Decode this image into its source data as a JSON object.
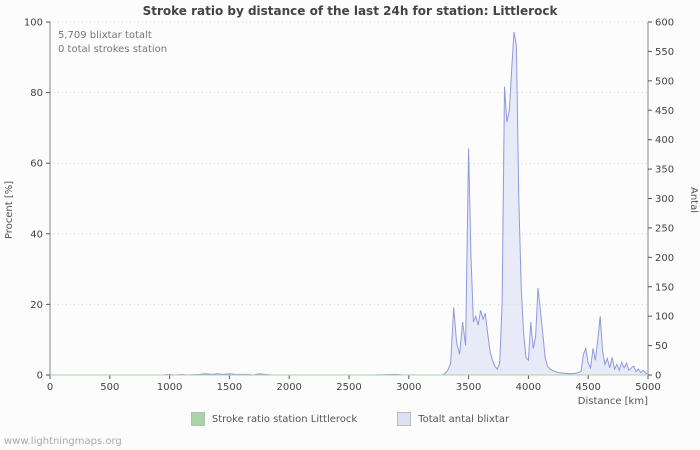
{
  "page": {
    "title": "Stroke ratio by distance of the last 24h for station: Littlerock",
    "watermark": "www.lightningmaps.org"
  },
  "annotations": {
    "line1": "5,709 blixtar totalt",
    "line2": "0 total strokes station"
  },
  "legend": [
    {
      "label": "Stroke ratio station Littlerock",
      "color": "#a8d5a8"
    },
    {
      "label": "Totalt antal blixtar",
      "color": "#dde1f6"
    }
  ],
  "chart_data": {
    "type": "area",
    "title": "Stroke ratio by distance of the last 24h for station: Littlerock",
    "xlabel": "Distance   [km]",
    "ylabel_left": "Procent   [%]",
    "ylabel_right": "Antal",
    "xlim": [
      0,
      5000
    ],
    "ylim_left": [
      0,
      100
    ],
    "ylim_right": [
      0,
      600
    ],
    "x_ticks": [
      0,
      500,
      1000,
      1500,
      2000,
      2500,
      3000,
      3500,
      4000,
      4500,
      5000
    ],
    "y_left_ticks": [
      0,
      20,
      40,
      60,
      80,
      100
    ],
    "y_right_ticks": [
      0,
      50,
      100,
      150,
      200,
      250,
      300,
      350,
      400,
      450,
      500,
      550,
      600
    ],
    "grid": "horizontal-dotted",
    "legend_position": "bottom",
    "series": [
      {
        "name": "Stroke ratio station Littlerock",
        "axis": "left",
        "color": "#a8d5a8",
        "points": [
          [
            0,
            0
          ],
          [
            5000,
            0
          ]
        ]
      },
      {
        "name": "Totalt antal blixtar",
        "axis": "right",
        "color": "#8f9ade",
        "fill": "#dde1f6",
        "points": [
          [
            0,
            0
          ],
          [
            400,
            0
          ],
          [
            800,
            0
          ],
          [
            950,
            0
          ],
          [
            1000,
            1
          ],
          [
            1050,
            0
          ],
          [
            1100,
            1
          ],
          [
            1150,
            0
          ],
          [
            1250,
            1
          ],
          [
            1300,
            2
          ],
          [
            1350,
            1
          ],
          [
            1400,
            2
          ],
          [
            1450,
            1
          ],
          [
            1500,
            2
          ],
          [
            1550,
            1
          ],
          [
            1650,
            1
          ],
          [
            1700,
            0
          ],
          [
            1750,
            2
          ],
          [
            1800,
            1
          ],
          [
            1850,
            0
          ],
          [
            2100,
            0
          ],
          [
            2400,
            0
          ],
          [
            2700,
            0
          ],
          [
            2900,
            1
          ],
          [
            2950,
            0
          ],
          [
            3150,
            0
          ],
          [
            3280,
            0
          ],
          [
            3300,
            2
          ],
          [
            3325,
            8
          ],
          [
            3350,
            20
          ],
          [
            3375,
            115
          ],
          [
            3400,
            55
          ],
          [
            3425,
            35
          ],
          [
            3450,
            90
          ],
          [
            3475,
            50
          ],
          [
            3500,
            385
          ],
          [
            3520,
            200
          ],
          [
            3540,
            90
          ],
          [
            3560,
            100
          ],
          [
            3580,
            85
          ],
          [
            3600,
            110
          ],
          [
            3620,
            95
          ],
          [
            3640,
            105
          ],
          [
            3660,
            70
          ],
          [
            3680,
            40
          ],
          [
            3700,
            25
          ],
          [
            3720,
            15
          ],
          [
            3740,
            10
          ],
          [
            3760,
            20
          ],
          [
            3780,
            120
          ],
          [
            3800,
            490
          ],
          [
            3820,
            430
          ],
          [
            3840,
            450
          ],
          [
            3860,
            520
          ],
          [
            3880,
            583
          ],
          [
            3900,
            560
          ],
          [
            3920,
            300
          ],
          [
            3940,
            150
          ],
          [
            3960,
            70
          ],
          [
            3980,
            30
          ],
          [
            4000,
            25
          ],
          [
            4020,
            90
          ],
          [
            4040,
            45
          ],
          [
            4060,
            65
          ],
          [
            4080,
            148
          ],
          [
            4100,
            110
          ],
          [
            4120,
            70
          ],
          [
            4140,
            30
          ],
          [
            4160,
            15
          ],
          [
            4180,
            10
          ],
          [
            4200,
            8
          ],
          [
            4250,
            4
          ],
          [
            4300,
            3
          ],
          [
            4350,
            2
          ],
          [
            4400,
            3
          ],
          [
            4440,
            6
          ],
          [
            4460,
            35
          ],
          [
            4480,
            45
          ],
          [
            4500,
            20
          ],
          [
            4520,
            12
          ],
          [
            4540,
            45
          ],
          [
            4560,
            25
          ],
          [
            4580,
            60
          ],
          [
            4600,
            100
          ],
          [
            4620,
            40
          ],
          [
            4640,
            18
          ],
          [
            4660,
            28
          ],
          [
            4680,
            12
          ],
          [
            4700,
            30
          ],
          [
            4720,
            10
          ],
          [
            4740,
            18
          ],
          [
            4760,
            8
          ],
          [
            4780,
            22
          ],
          [
            4800,
            12
          ],
          [
            4820,
            20
          ],
          [
            4840,
            8
          ],
          [
            4860,
            12
          ],
          [
            4880,
            15
          ],
          [
            4900,
            6
          ],
          [
            4920,
            10
          ],
          [
            4940,
            4
          ],
          [
            4960,
            8
          ],
          [
            4980,
            3
          ],
          [
            5000,
            2
          ]
        ]
      }
    ]
  }
}
